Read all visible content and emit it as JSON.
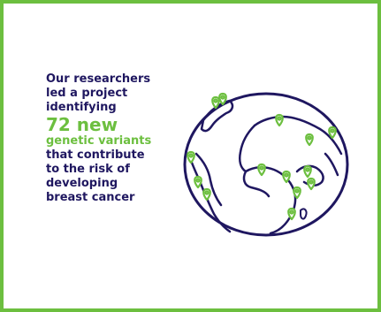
{
  "headline": {
    "lines": [
      "Our researchers",
      "led a project",
      "identifying"
    ],
    "highlight": "72 new",
    "highlight_sub": "genetic variants",
    "tail": [
      "that contribute",
      "to the risk of",
      "developing",
      "breast cancer"
    ]
  },
  "colors": {
    "accent_green": "#6cbf3f",
    "navy": "#1f1760"
  },
  "illustration": {
    "icon": "globe-icon",
    "marker_icon": "location-pin-icon",
    "marker_count": 14
  }
}
